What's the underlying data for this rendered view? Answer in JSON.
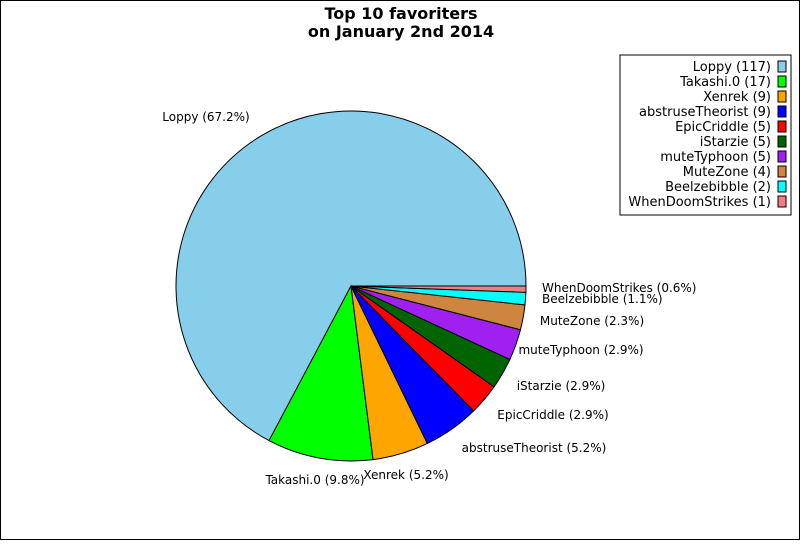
{
  "chart_data": {
    "type": "pie",
    "title_lines": [
      "Top 10 favoriters",
      "on January 2nd 2014"
    ],
    "slices": [
      {
        "name": "Loppy",
        "value": 117,
        "percent_label": "Loppy (67.2%)",
        "legend_label": "Loppy (117)",
        "color": "#87ceeb"
      },
      {
        "name": "Takashi.0",
        "value": 17,
        "percent_label": "Takashi.0 (9.8%)",
        "legend_label": "Takashi.0 (17)",
        "color": "#00ff00"
      },
      {
        "name": "Xenrek",
        "value": 9,
        "percent_label": "Xenrek (5.2%)",
        "legend_label": "Xenrek (9)",
        "color": "#ffa500"
      },
      {
        "name": "abstruseTheorist",
        "value": 9,
        "percent_label": "abstruseTheorist (5.2%)",
        "legend_label": "abstruseTheorist (9)",
        "color": "#0000ff"
      },
      {
        "name": "EpicCriddle",
        "value": 5,
        "percent_label": "EpicCriddle (2.9%)",
        "legend_label": "EpicCriddle (5)",
        "color": "#ff0000"
      },
      {
        "name": "iStarzie",
        "value": 5,
        "percent_label": "iStarzie (2.9%)",
        "legend_label": "iStarzie (5)",
        "color": "#006400"
      },
      {
        "name": "muteTyphoon",
        "value": 5,
        "percent_label": "muteTyphoon (2.9%)",
        "legend_label": "muteTyphoon (5)",
        "color": "#a020f0"
      },
      {
        "name": "MuteZone",
        "value": 4,
        "percent_label": "MuteZone (2.3%)",
        "legend_label": "MuteZone (4)",
        "color": "#cd853f"
      },
      {
        "name": "Beelzebibble",
        "value": 2,
        "percent_label": "Beelzebibble (1.1%)",
        "legend_label": "Beelzebibble (2)",
        "color": "#00ffff"
      },
      {
        "name": "WhenDoomStrikes",
        "value": 1,
        "percent_label": "WhenDoomStrikes (0.6%)",
        "legend_label": "WhenDoomStrikes (1)",
        "color": "#f08080"
      }
    ],
    "legend_position": "top-right",
    "start_angle_deg": 0,
    "direction": "counterclockwise"
  }
}
